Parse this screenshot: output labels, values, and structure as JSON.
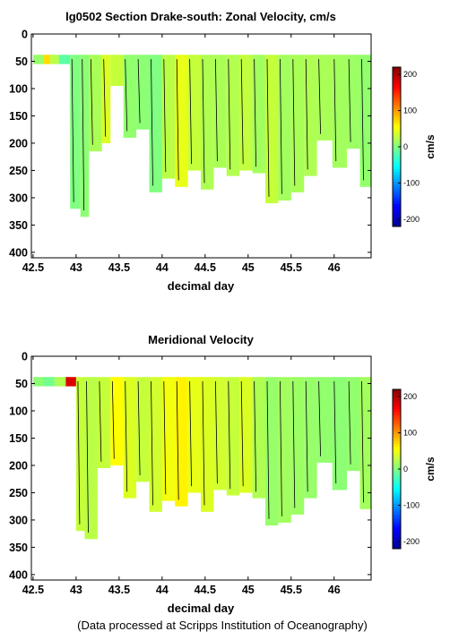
{
  "colormap": [
    "#00008f",
    "#0000ff",
    "#0080ff",
    "#00ffff",
    "#80ff80",
    "#ffff00",
    "#ff8000",
    "#ff0000",
    "#800000"
  ],
  "footer": "(Data processed at Scripps Institution of Oceanography)",
  "chart_data": [
    {
      "type": "heatmap",
      "title": "lg0502 Section Drake-south: Zonal Velocity, cm/s",
      "xlabel": "decimal day",
      "ylabel": "",
      "xlim": [
        42.48,
        46.43
      ],
      "ylim": [
        410,
        0
      ],
      "x_ticks": [
        42.5,
        43,
        43.5,
        44,
        44.5,
        45,
        45.5,
        46
      ],
      "x_tick_labels": [
        "42.5",
        "43",
        "43.5",
        "44",
        "44.5",
        "45",
        "45.5",
        "46"
      ],
      "y_ticks": [
        0,
        50,
        100,
        150,
        200,
        250,
        300,
        350,
        400
      ],
      "y_tick_labels": [
        "0",
        "50",
        "100",
        "150",
        "200",
        "250",
        "300",
        "350",
        "400"
      ],
      "colorbar": {
        "label": "cm/s",
        "range": [
          -220,
          220
        ],
        "ticks": [
          200,
          100,
          0,
          -100,
          -200
        ],
        "tick_labels": [
          "200",
          "100",
          "0",
          "-100",
          "-200"
        ]
      },
      "profiles": [
        {
          "x0": 42.5,
          "x1": 42.62,
          "depth": 55,
          "value": 10
        },
        {
          "x0": 42.62,
          "x1": 42.7,
          "depth": 55,
          "value": 70
        },
        {
          "x0": 42.7,
          "x1": 42.8,
          "depth": 55,
          "value": 25
        },
        {
          "x0": 42.8,
          "x1": 42.93,
          "depth": 55,
          "value": -15
        },
        {
          "x0": 42.93,
          "x1": 43.05,
          "depth": 320,
          "value": 0
        },
        {
          "x0": 43.05,
          "x1": 43.15,
          "depth": 335,
          "value": 5
        },
        {
          "x0": 43.15,
          "x1": 43.3,
          "depth": 215,
          "value": 18
        },
        {
          "x0": 43.3,
          "x1": 43.4,
          "depth": 200,
          "value": 40
        },
        {
          "x0": 43.4,
          "x1": 43.55,
          "depth": 95,
          "value": 30
        },
        {
          "x0": 43.55,
          "x1": 43.7,
          "depth": 190,
          "value": 8
        },
        {
          "x0": 43.7,
          "x1": 43.85,
          "depth": 175,
          "value": 5
        },
        {
          "x0": 43.85,
          "x1": 44.0,
          "depth": 290,
          "value": 0
        },
        {
          "x0": 44.0,
          "x1": 44.15,
          "depth": 265,
          "value": 25
        },
        {
          "x0": 44.15,
          "x1": 44.3,
          "depth": 280,
          "value": 45
        },
        {
          "x0": 44.3,
          "x1": 44.45,
          "depth": 250,
          "value": 30
        },
        {
          "x0": 44.45,
          "x1": 44.6,
          "depth": 285,
          "value": 20
        },
        {
          "x0": 44.6,
          "x1": 44.75,
          "depth": 245,
          "value": 18
        },
        {
          "x0": 44.75,
          "x1": 44.9,
          "depth": 260,
          "value": 22
        },
        {
          "x0": 44.9,
          "x1": 45.05,
          "depth": 250,
          "value": 28
        },
        {
          "x0": 45.05,
          "x1": 45.2,
          "depth": 255,
          "value": 15
        },
        {
          "x0": 45.2,
          "x1": 45.35,
          "depth": 310,
          "value": 30
        },
        {
          "x0": 45.35,
          "x1": 45.5,
          "depth": 305,
          "value": 15
        },
        {
          "x0": 45.5,
          "x1": 45.65,
          "depth": 290,
          "value": 18
        },
        {
          "x0": 45.65,
          "x1": 45.8,
          "depth": 260,
          "value": 20
        },
        {
          "x0": 45.8,
          "x1": 45.98,
          "depth": 195,
          "value": 18
        },
        {
          "x0": 45.98,
          "x1": 46.15,
          "depth": 245,
          "value": 15
        },
        {
          "x0": 46.15,
          "x1": 46.3,
          "depth": 210,
          "value": 12
        },
        {
          "x0": 46.3,
          "x1": 46.43,
          "depth": 280,
          "value": 8
        }
      ]
    },
    {
      "type": "heatmap",
      "title": "Meridional Velocity",
      "xlabel": "decimal day",
      "ylabel": "",
      "xlim": [
        42.48,
        46.43
      ],
      "ylim": [
        410,
        0
      ],
      "x_ticks": [
        42.5,
        43,
        43.5,
        44,
        44.5,
        45,
        45.5,
        46
      ],
      "x_tick_labels": [
        "42.5",
        "43",
        "43.5",
        "44",
        "44.5",
        "45",
        "45.5",
        "46"
      ],
      "y_ticks": [
        0,
        50,
        100,
        150,
        200,
        250,
        300,
        350,
        400
      ],
      "y_tick_labels": [
        "0",
        "50",
        "100",
        "150",
        "200",
        "250",
        "300",
        "350",
        "400"
      ],
      "colorbar": {
        "label": "cm/s",
        "range": [
          -220,
          220
        ],
        "ticks": [
          200,
          100,
          0,
          -100,
          -200
        ],
        "tick_labels": [
          "200",
          "100",
          "0",
          "-100",
          "-200"
        ]
      },
      "profiles": [
        {
          "x0": 42.5,
          "x1": 42.62,
          "depth": 55,
          "value": 5
        },
        {
          "x0": 42.62,
          "x1": 42.75,
          "depth": 55,
          "value": -5
        },
        {
          "x0": 42.75,
          "x1": 42.88,
          "depth": 55,
          "value": 20
        },
        {
          "x0": 42.88,
          "x1": 43.0,
          "depth": 55,
          "value": 180
        },
        {
          "x0": 43.0,
          "x1": 43.1,
          "depth": 320,
          "value": 30
        },
        {
          "x0": 43.1,
          "x1": 43.25,
          "depth": 335,
          "value": 25
        },
        {
          "x0": 43.25,
          "x1": 43.4,
          "depth": 205,
          "value": 30
        },
        {
          "x0": 43.4,
          "x1": 43.55,
          "depth": 200,
          "value": 55
        },
        {
          "x0": 43.55,
          "x1": 43.7,
          "depth": 260,
          "value": 40
        },
        {
          "x0": 43.7,
          "x1": 43.85,
          "depth": 230,
          "value": 30
        },
        {
          "x0": 43.85,
          "x1": 44.0,
          "depth": 285,
          "value": 35
        },
        {
          "x0": 44.0,
          "x1": 44.15,
          "depth": 265,
          "value": 50
        },
        {
          "x0": 44.15,
          "x1": 44.3,
          "depth": 275,
          "value": 60
        },
        {
          "x0": 44.3,
          "x1": 44.45,
          "depth": 250,
          "value": 45
        },
        {
          "x0": 44.45,
          "x1": 44.6,
          "depth": 285,
          "value": 40
        },
        {
          "x0": 44.6,
          "x1": 44.75,
          "depth": 245,
          "value": 35
        },
        {
          "x0": 44.75,
          "x1": 44.9,
          "depth": 255,
          "value": 30
        },
        {
          "x0": 44.9,
          "x1": 45.05,
          "depth": 250,
          "value": 40
        },
        {
          "x0": 45.05,
          "x1": 45.2,
          "depth": 260,
          "value": 20
        },
        {
          "x0": 45.2,
          "x1": 45.35,
          "depth": 310,
          "value": 10
        },
        {
          "x0": 45.35,
          "x1": 45.5,
          "depth": 305,
          "value": 15
        },
        {
          "x0": 45.5,
          "x1": 45.65,
          "depth": 290,
          "value": 12
        },
        {
          "x0": 45.65,
          "x1": 45.8,
          "depth": 260,
          "value": 10
        },
        {
          "x0": 45.8,
          "x1": 45.98,
          "depth": 195,
          "value": 8
        },
        {
          "x0": 45.98,
          "x1": 46.15,
          "depth": 245,
          "value": 5
        },
        {
          "x0": 46.15,
          "x1": 46.3,
          "depth": 210,
          "value": 8
        },
        {
          "x0": 46.3,
          "x1": 46.43,
          "depth": 280,
          "value": 15
        }
      ]
    }
  ]
}
